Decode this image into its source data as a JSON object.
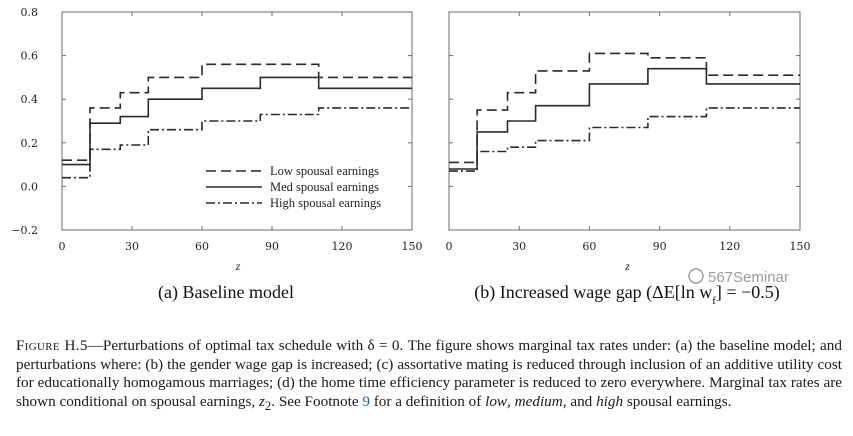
{
  "chart_data": [
    {
      "type": "line",
      "step": true,
      "title": "(a) Baseline model",
      "xlabel": "z",
      "ylabel": "",
      "xlim": [
        0,
        150
      ],
      "ylim": [
        -0.2,
        0.8
      ],
      "xticks": [
        0,
        30,
        60,
        90,
        120,
        150
      ],
      "yticks": [
        -0.2,
        0.0,
        0.2,
        0.4,
        0.6,
        0.8
      ],
      "xtick_labels": [
        "0",
        "30",
        "60",
        "90",
        "120",
        "150"
      ],
      "ytick_labels": [
        "−0.2",
        "0.0",
        "0.2",
        "0.4",
        "0.6",
        "0.8"
      ],
      "legend": "center",
      "series": [
        {
          "name": "Low spousal earnings",
          "style": "dashed",
          "x": [
            0,
            12,
            12,
            25,
            25,
            37,
            37,
            60,
            60,
            110,
            110,
            150
          ],
          "y": [
            0.12,
            0.12,
            0.36,
            0.36,
            0.43,
            0.43,
            0.5,
            0.5,
            0.56,
            0.56,
            0.5,
            0.5
          ]
        },
        {
          "name": "Med spousal earnings",
          "style": "solid",
          "x": [
            0,
            12,
            12,
            25,
            25,
            37,
            37,
            60,
            60,
            85,
            85,
            110,
            110,
            150
          ],
          "y": [
            0.1,
            0.1,
            0.29,
            0.29,
            0.32,
            0.32,
            0.4,
            0.4,
            0.45,
            0.45,
            0.5,
            0.5,
            0.45,
            0.45
          ]
        },
        {
          "name": "High spousal earnings",
          "style": "dashdot",
          "x": [
            0,
            12,
            12,
            25,
            25,
            37,
            37,
            60,
            60,
            85,
            85,
            110,
            110,
            150
          ],
          "y": [
            0.04,
            0.04,
            0.17,
            0.17,
            0.19,
            0.19,
            0.26,
            0.26,
            0.3,
            0.3,
            0.33,
            0.33,
            0.36,
            0.36
          ]
        }
      ]
    },
    {
      "type": "line",
      "step": true,
      "title": "(b) Increased wage gap (ΔE[ln w",
      "title_sub": "f",
      "title_tail": "] = −0.5)",
      "xlabel": "z",
      "ylabel": "",
      "xlim": [
        0,
        150
      ],
      "ylim": [
        -0.2,
        0.8
      ],
      "xticks": [
        0,
        30,
        60,
        90,
        120,
        150
      ],
      "xtick_labels": [
        "0",
        "30",
        "60",
        "90",
        "120",
        "150"
      ],
      "series": [
        {
          "name": "Low spousal earnings",
          "style": "dashed",
          "x": [
            0,
            12,
            12,
            25,
            25,
            37,
            37,
            60,
            60,
            85,
            85,
            110,
            110,
            150
          ],
          "y": [
            0.11,
            0.11,
            0.35,
            0.35,
            0.43,
            0.43,
            0.53,
            0.53,
            0.61,
            0.61,
            0.59,
            0.59,
            0.51,
            0.51
          ]
        },
        {
          "name": "Med spousal earnings",
          "style": "solid",
          "x": [
            0,
            12,
            12,
            25,
            25,
            37,
            37,
            60,
            60,
            85,
            85,
            110,
            110,
            150
          ],
          "y": [
            0.08,
            0.08,
            0.25,
            0.25,
            0.3,
            0.3,
            0.37,
            0.37,
            0.47,
            0.47,
            0.54,
            0.54,
            0.47,
            0.47
          ]
        },
        {
          "name": "High spousal earnings",
          "style": "dashdot",
          "x": [
            0,
            12,
            12,
            25,
            25,
            37,
            37,
            60,
            60,
            85,
            85,
            110,
            110,
            150
          ],
          "y": [
            0.07,
            0.07,
            0.16,
            0.16,
            0.18,
            0.18,
            0.21,
            0.21,
            0.27,
            0.27,
            0.32,
            0.32,
            0.36,
            0.36
          ]
        }
      ]
    }
  ],
  "caption": {
    "label": "Figure H.5",
    "text_1": "—Perturbations of optimal tax schedule with δ = 0. The figure shows marginal tax rates under: (a) the baseline model; and perturbations where: (b) the gender wage gap is increased; (c) assortative mating is reduced through inclusion of an additive utility cost for educationally homogamous marriages; (d) the home time efficiency parameter is reduced to zero everywhere. Marginal tax rates are shown conditional on spousal earnings, ",
    "z2": "z",
    "z2_sub": "2",
    "text_2": ". See Footnote ",
    "footnote_ref": "9",
    "text_3": " for a definition of ",
    "low": "low",
    "comma": ", ",
    "medium": "medium",
    "and": ", and ",
    "high": "high",
    "text_4": " spousal earnings."
  },
  "watermark": "567Seminar",
  "colors": {
    "line": "#2a2a2a",
    "axis": "#6b6b6b",
    "link": "#2b5aa8"
  }
}
